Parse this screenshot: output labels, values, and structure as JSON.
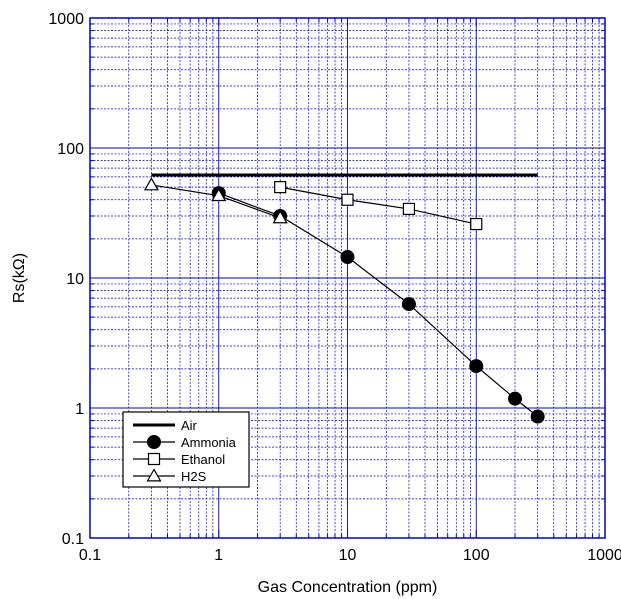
{
  "chart_data": {
    "type": "line",
    "title": "",
    "xlabel": "Gas Concentration (ppm)",
    "ylabel": "Rs(kΩ)",
    "xscale": "log",
    "yscale": "log",
    "xlim": [
      0.1,
      1000
    ],
    "ylim": [
      0.1,
      1000
    ],
    "x_ticks": [
      "0.1",
      "1",
      "10",
      "100",
      "1000"
    ],
    "y_ticks": [
      "0.1",
      "1",
      "10",
      "100",
      "1000"
    ],
    "grid": true,
    "legend_position": "bottom-left",
    "series": [
      {
        "name": "Air",
        "marker": "none",
        "color": "#000000",
        "points": [
          [
            0.3,
            62
          ],
          [
            300,
            62
          ]
        ]
      },
      {
        "name": "Ammonia",
        "marker": "filled-circle",
        "color": "#000000",
        "points": [
          [
            1,
            45
          ],
          [
            3,
            30
          ],
          [
            10,
            14.5
          ],
          [
            30,
            6.3
          ],
          [
            100,
            2.1
          ],
          [
            200,
            1.18
          ],
          [
            300,
            0.86
          ]
        ]
      },
      {
        "name": "Ethanol",
        "marker": "open-square",
        "color": "#000000",
        "points": [
          [
            3,
            50
          ],
          [
            10,
            40
          ],
          [
            30,
            34
          ],
          [
            100,
            26
          ]
        ]
      },
      {
        "name": "H2S",
        "marker": "open-triangle",
        "color": "#000000",
        "points": [
          [
            0.3,
            52
          ],
          [
            1,
            43
          ],
          [
            3,
            29
          ]
        ]
      }
    ],
    "colors": {
      "grid": "#0000cc",
      "frame": "#0000cc",
      "data": "#000000"
    }
  }
}
